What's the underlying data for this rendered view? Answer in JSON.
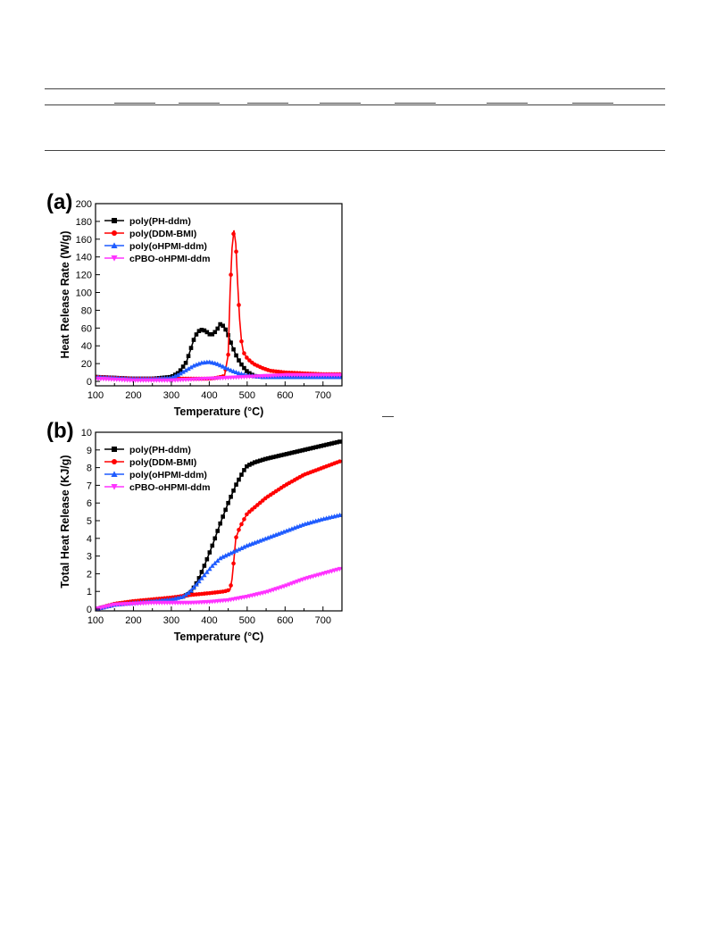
{
  "colors": {
    "poly_PH_ddm": "#000000",
    "poly_DDM_BMI": "#ff0000",
    "poly_oHPMI_ddm": "#1f5cff",
    "cPBO_oHPMI_ddm": "#ff33ff"
  },
  "chart_data": [
    {
      "panel_label": "(a)",
      "type": "line",
      "xlabel": "Temperature (°C)",
      "ylabel": "Heat Release Rate (W/g)",
      "xlim": [
        100,
        750
      ],
      "ylim": [
        -5,
        200
      ],
      "xticks": [
        100,
        200,
        300,
        400,
        500,
        600,
        700
      ],
      "yticks": [
        0,
        20,
        40,
        60,
        80,
        100,
        120,
        140,
        160,
        180,
        200
      ],
      "legend_position": "top-left",
      "series": [
        {
          "name": "poly(PH-ddm)",
          "color": "#000000",
          "marker": "square",
          "x": [
            100,
            150,
            200,
            250,
            300,
            320,
            340,
            350,
            360,
            370,
            380,
            390,
            400,
            410,
            420,
            430,
            440,
            450,
            460,
            470,
            480,
            490,
            500,
            510,
            520,
            540,
            560,
            600,
            650,
            700,
            750
          ],
          "y": [
            5,
            4,
            3,
            3,
            5,
            10,
            22,
            35,
            48,
            56,
            58,
            57,
            53,
            53,
            58,
            65,
            61,
            52,
            40,
            30,
            22,
            16,
            11,
            8,
            6,
            5,
            5,
            5,
            5,
            5,
            5
          ]
        },
        {
          "name": "poly(DDM-BMI)",
          "color": "#ff0000",
          "marker": "circle",
          "x": [
            100,
            150,
            200,
            250,
            300,
            350,
            400,
            420,
            440,
            450,
            455,
            460,
            465,
            470,
            475,
            480,
            485,
            490,
            500,
            510,
            520,
            540,
            560,
            600,
            650,
            700,
            750
          ],
          "y": [
            5,
            4,
            3,
            3,
            3,
            3,
            3,
            4,
            6,
            30,
            100,
            150,
            170,
            155,
            110,
            70,
            45,
            33,
            26,
            22,
            19,
            15,
            12,
            10,
            9,
            8,
            8
          ]
        },
        {
          "name": "poly(oHPMI-ddm)",
          "color": "#1f5cff",
          "marker": "triangle-up",
          "x": [
            100,
            150,
            200,
            250,
            300,
            320,
            340,
            360,
            380,
            400,
            420,
            440,
            460,
            480,
            500,
            520,
            540,
            560,
            600,
            650,
            700,
            750
          ],
          "y": [
            5,
            4,
            3,
            3,
            4,
            8,
            13,
            18,
            21,
            22,
            20,
            16,
            12,
            9,
            7,
            6,
            5,
            5,
            5,
            5,
            5,
            5
          ]
        },
        {
          "name": "cPBO-oHPMI-ddm",
          "color": "#ff33ff",
          "marker": "triangle-down",
          "x": [
            100,
            150,
            200,
            250,
            300,
            350,
            400,
            450,
            500,
            550,
            600,
            650,
            700,
            750
          ],
          "y": [
            3,
            2,
            1,
            1,
            1,
            2,
            3,
            4,
            5,
            6,
            7,
            7,
            7,
            7
          ]
        }
      ]
    },
    {
      "panel_label": "(b)",
      "type": "line",
      "xlabel": "Temperature (°C)",
      "ylabel": "Total Heat Release (KJ/g)",
      "xlim": [
        100,
        750
      ],
      "ylim": [
        -0.1,
        10
      ],
      "xticks": [
        100,
        200,
        300,
        400,
        500,
        600,
        700
      ],
      "yticks": [
        0,
        1,
        2,
        3,
        4,
        5,
        6,
        7,
        8,
        9,
        10
      ],
      "legend_position": "top-left",
      "series": [
        {
          "name": "poly(PH-ddm)",
          "color": "#000000",
          "marker": "square",
          "x": [
            100,
            150,
            200,
            250,
            300,
            330,
            350,
            370,
            390,
            410,
            430,
            450,
            470,
            490,
            500,
            520,
            550,
            600,
            650,
            700,
            750
          ],
          "y": [
            0,
            0.25,
            0.4,
            0.5,
            0.6,
            0.7,
            0.9,
            1.6,
            2.6,
            3.7,
            4.9,
            6.0,
            7.0,
            7.8,
            8.1,
            8.3,
            8.5,
            8.75,
            9.0,
            9.25,
            9.5
          ]
        },
        {
          "name": "poly(DDM-BMI)",
          "color": "#ff0000",
          "marker": "circle",
          "x": [
            100,
            150,
            200,
            250,
            300,
            350,
            400,
            440,
            455,
            460,
            465,
            470,
            480,
            500,
            550,
            600,
            650,
            700,
            750
          ],
          "y": [
            0,
            0.3,
            0.45,
            0.55,
            0.65,
            0.8,
            0.9,
            1.0,
            1.1,
            1.7,
            2.8,
            4.0,
            4.6,
            5.4,
            6.3,
            7.0,
            7.6,
            8.0,
            8.4
          ]
        },
        {
          "name": "poly(oHPMI-ddm)",
          "color": "#1f5cff",
          "marker": "triangle-up",
          "x": [
            100,
            150,
            200,
            250,
            300,
            330,
            350,
            370,
            390,
            410,
            430,
            450,
            470,
            500,
            550,
            600,
            650,
            700,
            750
          ],
          "y": [
            0,
            0.25,
            0.35,
            0.45,
            0.55,
            0.7,
            1.0,
            1.5,
            2.0,
            2.5,
            2.9,
            3.1,
            3.3,
            3.6,
            4.0,
            4.4,
            4.8,
            5.1,
            5.35
          ]
        },
        {
          "name": "cPBO-oHPMI-ddm",
          "color": "#ff33ff",
          "marker": "triangle-down",
          "x": [
            100,
            150,
            200,
            250,
            300,
            350,
            400,
            450,
            500,
            550,
            600,
            650,
            700,
            750
          ],
          "y": [
            0,
            0.25,
            0.3,
            0.35,
            0.35,
            0.35,
            0.4,
            0.5,
            0.7,
            0.95,
            1.3,
            1.7,
            2.0,
            2.3
          ]
        }
      ]
    }
  ]
}
